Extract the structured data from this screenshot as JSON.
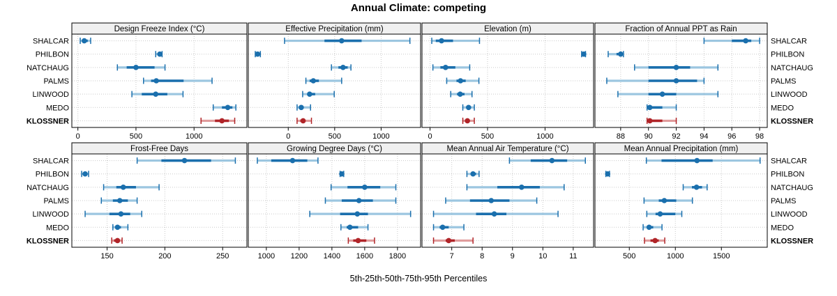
{
  "title": "Annual Climate: competing",
  "xlabel": "5th-25th-50th-75th-95th Percentiles",
  "percentile_labels": [
    "5th",
    "25th",
    "50th",
    "75th",
    "95th"
  ],
  "stations": [
    {
      "name": "SHALCAR",
      "bold": false
    },
    {
      "name": "PHILBON",
      "bold": false
    },
    {
      "name": "NATCHAUG",
      "bold": false
    },
    {
      "name": "PALMS",
      "bold": false
    },
    {
      "name": "LINWOOD",
      "bold": false
    },
    {
      "name": "MEDO",
      "bold": false
    },
    {
      "name": "KLOSSNER",
      "bold": true
    }
  ],
  "colors": {
    "blue": "#1a6fad",
    "blue_light": "#9cc6e0",
    "red": "#b02428",
    "red_light": "#e09c9c",
    "highlight_station": "KLOSSNER",
    "header_bg": "#f0f0f0",
    "grid": "#c9c9c9",
    "border": "#000000",
    "tick": "#000000"
  },
  "chart_data": [
    {
      "type": "dot-interval",
      "row": 0,
      "col": 0,
      "title": "Design Freeze Index (°C)",
      "ticks": [
        0,
        500,
        1000
      ],
      "xlim": [
        -52,
        1455
      ],
      "values": {
        "SHALCAR": [
          20,
          35,
          55,
          85,
          110
        ],
        "PHILBON": [
          670,
          690,
          705,
          720,
          725
        ],
        "NATCHAUG": [
          340,
          420,
          500,
          660,
          750
        ],
        "PALMS": [
          565,
          630,
          675,
          910,
          1155
        ],
        "LINWOOD": [
          465,
          550,
          670,
          770,
          905
        ],
        "MEDO": [
          1165,
          1240,
          1290,
          1330,
          1360
        ],
        "KLOSSNER": [
          1060,
          1180,
          1240,
          1300,
          1350
        ]
      }
    },
    {
      "type": "dot-interval",
      "row": 0,
      "col": 1,
      "title": "Effective Precipitation (mm)",
      "ticks": [
        0,
        500,
        1000
      ],
      "xlim": [
        -430,
        1425
      ],
      "values": {
        "SHALCAR": [
          -40,
          390,
          575,
          790,
          1310
        ],
        "PHILBON": [
          -355,
          -340,
          -330,
          -318,
          -300
        ],
        "NATCHAUG": [
          465,
          540,
          590,
          640,
          675
        ],
        "PALMS": [
          190,
          230,
          270,
          330,
          575
        ],
        "LINWOOD": [
          155,
          205,
          230,
          290,
          495
        ],
        "MEDO": [
          95,
          115,
          140,
          165,
          240
        ],
        "KLOSSNER": [
          95,
          130,
          160,
          185,
          250
        ]
      }
    },
    {
      "type": "dot-interval",
      "row": 0,
      "col": 2,
      "title": "Elevation (m)",
      "ticks": [
        0,
        500,
        1000
      ],
      "xlim": [
        -70,
        1422
      ],
      "values": {
        "SHALCAR": [
          15,
          50,
          100,
          200,
          430
        ],
        "PHILBON": [
          1318,
          1328,
          1337,
          1344,
          1352
        ],
        "NATCHAUG": [
          25,
          90,
          135,
          220,
          345
        ],
        "PALMS": [
          145,
          230,
          265,
          310,
          425
        ],
        "LINWOOD": [
          180,
          235,
          262,
          300,
          365
        ],
        "MEDO": [
          285,
          320,
          335,
          355,
          385
        ],
        "KLOSSNER": [
          285,
          310,
          325,
          345,
          385
        ]
      }
    },
    {
      "type": "dot-interval",
      "row": 0,
      "col": 3,
      "title": "Fraction of Annual PPT as Rain",
      "ticks": [
        88,
        90,
        92,
        94,
        96,
        98
      ],
      "xlim": [
        86.15,
        98.55
      ],
      "values": {
        "SHALCAR": [
          94,
          96,
          97,
          97.4,
          98
        ],
        "PHILBON": [
          87.1,
          87.7,
          88,
          88.1,
          88.2
        ],
        "NATCHAUG": [
          89,
          90,
          92,
          93,
          95
        ],
        "PALMS": [
          87,
          90,
          92,
          93.5,
          94
        ],
        "LINWOOD": [
          87.8,
          90,
          91,
          92,
          95
        ],
        "MEDO": [
          89.9,
          90,
          90.1,
          91,
          92
        ],
        "KLOSSNER": [
          89.9,
          90,
          90.1,
          91,
          92
        ]
      }
    },
    {
      "type": "dot-interval",
      "row": 1,
      "col": 0,
      "title": "Frost-Free Days",
      "ticks": [
        150,
        200,
        250
      ],
      "xlim": [
        119.5,
        271
      ],
      "values": {
        "SHALCAR": [
          176,
          197,
          217,
          240,
          261
        ],
        "PHILBON": [
          128,
          130,
          131,
          132,
          134
        ],
        "NATCHAUG": [
          147,
          158,
          164,
          175,
          195
        ],
        "PALMS": [
          145,
          155,
          161,
          168,
          176
        ],
        "LINWOOD": [
          131,
          152,
          162,
          170,
          180
        ],
        "MEDO": [
          155,
          157,
          159,
          162,
          168
        ],
        "KLOSSNER": [
          154,
          156,
          159,
          161,
          163
        ]
      }
    },
    {
      "type": "dot-interval",
      "row": 1,
      "col": 1,
      "title": "Growing Degree Days (°C)",
      "ticks": [
        1000,
        1200,
        1400,
        1600,
        1800
      ],
      "xlim": [
        890,
        1941
      ],
      "values": {
        "SHALCAR": [
          945,
          1030,
          1160,
          1250,
          1315
        ],
        "PHILBON": [
          1450,
          1455,
          1460,
          1465,
          1472
        ],
        "NATCHAUG": [
          1395,
          1495,
          1600,
          1695,
          1790
        ],
        "PALMS": [
          1360,
          1460,
          1565,
          1650,
          1790
        ],
        "LINWOOD": [
          1265,
          1450,
          1555,
          1620,
          1880
        ],
        "MEDO": [
          1455,
          1490,
          1510,
          1560,
          1620
        ],
        "KLOSSNER": [
          1500,
          1530,
          1560,
          1610,
          1660
        ]
      }
    },
    {
      "type": "dot-interval",
      "row": 1,
      "col": 2,
      "title": "Mean Annual Air Temperature (°C)",
      "ticks": [
        7,
        8,
        9,
        10,
        11
      ],
      "xlim": [
        6.02,
        11.67
      ],
      "values": {
        "SHALCAR": [
          8.9,
          9.6,
          10.3,
          10.8,
          11.4
        ],
        "PHILBON": [
          7.5,
          7.65,
          7.7,
          7.8,
          7.9
        ],
        "NATCHAUG": [
          7.5,
          8.5,
          9.3,
          9.9,
          10.7
        ],
        "PALMS": [
          6.8,
          7.6,
          8.3,
          8.9,
          9.8
        ],
        "LINWOOD": [
          6.4,
          7.8,
          8.4,
          8.8,
          10.5
        ],
        "MEDO": [
          6.4,
          6.6,
          6.7,
          6.9,
          7.4
        ],
        "KLOSSNER": [
          6.4,
          6.8,
          6.9,
          7.1,
          7.7
        ]
      }
    },
    {
      "type": "dot-interval",
      "row": 1,
      "col": 3,
      "title": "Mean Annual Precipitation (mm)",
      "ticks": [
        500,
        1000,
        1500
      ],
      "xlim": [
        127,
        1998
      ],
      "values": {
        "SHALCAR": [
          685,
          850,
          1235,
          1405,
          1920
        ],
        "PHILBON": [
          245,
          255,
          265,
          275,
          285
        ],
        "NATCHAUG": [
          1085,
          1180,
          1230,
          1290,
          1345
        ],
        "PALMS": [
          660,
          820,
          880,
          1010,
          1185
        ],
        "LINWOOD": [
          690,
          785,
          835,
          1000,
          1070
        ],
        "MEDO": [
          650,
          690,
          715,
          760,
          855
        ],
        "KLOSSNER": [
          665,
          730,
          780,
          820,
          885
        ]
      }
    }
  ]
}
